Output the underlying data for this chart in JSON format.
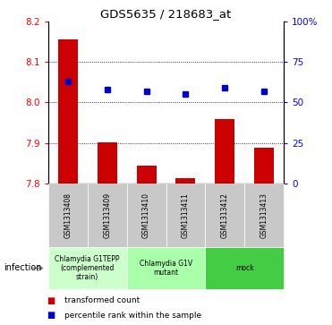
{
  "title": "GDS5635 / 218683_at",
  "samples": [
    "GSM1313408",
    "GSM1313409",
    "GSM1313410",
    "GSM1313411",
    "GSM1313412",
    "GSM1313413"
  ],
  "transformed_counts": [
    8.155,
    7.902,
    7.845,
    7.813,
    7.958,
    7.888
  ],
  "percentile_ranks": [
    63,
    58,
    57,
    55,
    59,
    57
  ],
  "ylim_left": [
    7.8,
    8.2
  ],
  "ylim_right": [
    0,
    100
  ],
  "yticks_left": [
    7.8,
    7.9,
    8.0,
    8.1,
    8.2
  ],
  "yticks_right": [
    0,
    25,
    50,
    75,
    100
  ],
  "ytick_labels_right": [
    "0",
    "25",
    "50",
    "75",
    "100%"
  ],
  "bar_color": "#cc0000",
  "dot_color": "#0000cc",
  "sample_box_color": "#c8c8c8",
  "groups": [
    {
      "label": "Chlamydia G1TEPP\n(complemented\nstrain)",
      "color": "#ccffcc",
      "start": 0,
      "end": 1
    },
    {
      "label": "Chlamydia G1V\nmutant",
      "color": "#aaffaa",
      "start": 2,
      "end": 3
    },
    {
      "label": "mock",
      "color": "#44cc44",
      "start": 4,
      "end": 5
    }
  ],
  "infection_label": "infection",
  "legend_items": [
    {
      "label": "transformed count",
      "color": "#cc0000"
    },
    {
      "label": "percentile rank within the sample",
      "color": "#0000cc"
    }
  ],
  "gridline_values": [
    7.9,
    8.0,
    8.1
  ]
}
